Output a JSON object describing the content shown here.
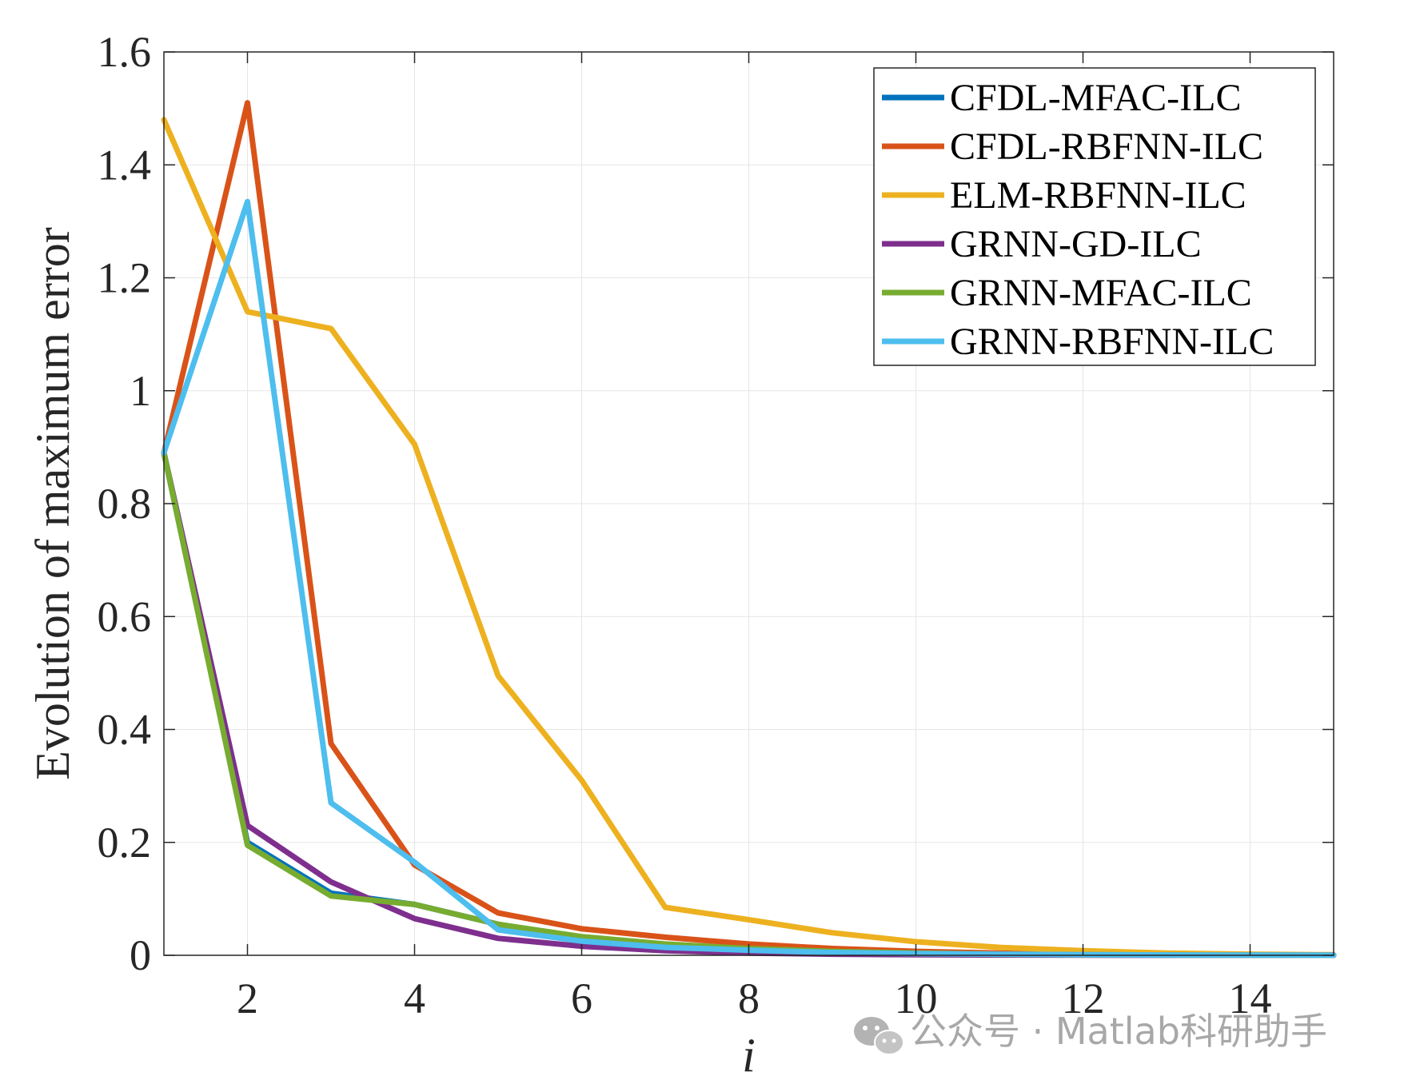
{
  "chart_data": {
    "type": "line",
    "xlabel": "i",
    "ylabel": "Evolution of maximum error",
    "xlim": [
      1,
      15
    ],
    "ylim": [
      0,
      1.6
    ],
    "xticks": [
      2,
      4,
      6,
      8,
      10,
      12,
      14
    ],
    "xtick_labels": [
      "2",
      "4",
      "6",
      "8",
      "10",
      "12",
      "14"
    ],
    "yticks": [
      0,
      0.2,
      0.4,
      0.6,
      0.8,
      1,
      1.2,
      1.4,
      1.6
    ],
    "ytick_labels": [
      "0",
      "0.2",
      "0.4",
      "0.6",
      "0.8",
      "1",
      "1.2",
      "1.4",
      "1.6"
    ],
    "grid": true,
    "legend_position": "top-right",
    "x": [
      1,
      2,
      3,
      4,
      5,
      6,
      7,
      8,
      9,
      10,
      11,
      12,
      13,
      14,
      15
    ],
    "series": [
      {
        "name": "CFDL-MFAC-ILC",
        "color": "#0072BD",
        "values": [
          0.89,
          0.2,
          0.11,
          0.09,
          0.055,
          0.03,
          0.018,
          0.01,
          0.006,
          0.004,
          0.002,
          0.001,
          0.0005,
          0.0003,
          0.0002
        ]
      },
      {
        "name": "CFDL-RBFNN-ILC",
        "color": "#D95319",
        "values": [
          0.89,
          1.51,
          0.375,
          0.16,
          0.075,
          0.047,
          0.032,
          0.02,
          0.012,
          0.007,
          0.004,
          0.002,
          0.001,
          0.0006,
          0.0003
        ]
      },
      {
        "name": "ELM-RBFNN-ILC",
        "color": "#EDB120",
        "values": [
          1.48,
          1.14,
          1.11,
          0.905,
          0.495,
          0.31,
          0.085,
          0.063,
          0.04,
          0.024,
          0.014,
          0.008,
          0.004,
          0.002,
          0.001
        ]
      },
      {
        "name": "GRNN-GD-ILC",
        "color": "#7E2F8E",
        "values": [
          0.89,
          0.23,
          0.13,
          0.065,
          0.03,
          0.016,
          0.008,
          0.004,
          0.002,
          0.001,
          0.0006,
          0.0003,
          0.0002,
          0.0001,
          0.0001
        ]
      },
      {
        "name": "GRNN-MFAC-ILC",
        "color": "#77AC30",
        "values": [
          0.89,
          0.195,
          0.105,
          0.09,
          0.055,
          0.033,
          0.02,
          0.012,
          0.007,
          0.004,
          0.002,
          0.001,
          0.0006,
          0.0003,
          0.0002
        ]
      },
      {
        "name": "GRNN-RBFNN-ILC",
        "color": "#4DBEEE",
        "values": [
          0.89,
          1.335,
          0.27,
          0.165,
          0.045,
          0.025,
          0.014,
          0.009,
          0.005,
          0.003,
          0.002,
          0.001,
          0.0005,
          0.0003,
          0.0002
        ]
      }
    ]
  },
  "watermark": {
    "text": "公众号 · Matlab科研助手",
    "icon": "wechat-icon"
  }
}
